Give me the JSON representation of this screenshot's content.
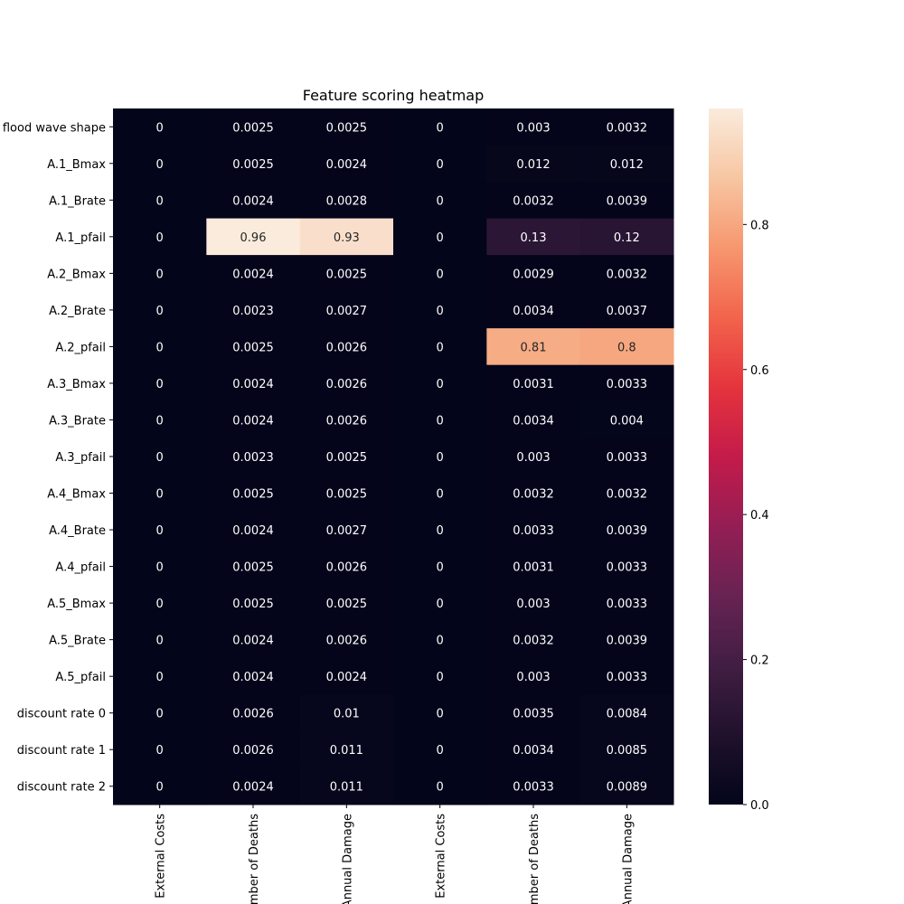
{
  "chart_data": {
    "type": "heatmap",
    "title": "Feature scoring heatmap",
    "row_labels": [
      "flood wave shape",
      "A.1_Bmax",
      "A.1_Brate",
      "A.1_pfail",
      "A.2_Bmax",
      "A.2_Brate",
      "A.2_pfail",
      "A.3_Bmax",
      "A.3_Brate",
      "A.3_pfail",
      "A.4_Bmax",
      "A.4_Brate",
      "A.4_pfail",
      "A.5_Bmax",
      "A.5_Brate",
      "A.5_pfail",
      "discount rate 0",
      "discount rate 1",
      "discount rate 2"
    ],
    "column_labels": [
      "External Costs",
      "Number of Deaths",
      "Annual Damage",
      "External Costs",
      "Number of Deaths",
      "Annual Damage"
    ],
    "values": [
      [
        0,
        0.0025,
        0.0025,
        0,
        0.003,
        0.0032
      ],
      [
        0,
        0.0025,
        0.0024,
        0,
        0.012,
        0.012
      ],
      [
        0,
        0.0024,
        0.0028,
        0,
        0.0032,
        0.0039
      ],
      [
        0,
        0.96,
        0.93,
        0,
        0.13,
        0.12
      ],
      [
        0,
        0.0024,
        0.0025,
        0,
        0.0029,
        0.0032
      ],
      [
        0,
        0.0023,
        0.0027,
        0,
        0.0034,
        0.0037
      ],
      [
        0,
        0.0025,
        0.0026,
        0,
        0.81,
        0.8
      ],
      [
        0,
        0.0024,
        0.0026,
        0,
        0.0031,
        0.0033
      ],
      [
        0,
        0.0024,
        0.0026,
        0,
        0.0034,
        0.004
      ],
      [
        0,
        0.0023,
        0.0025,
        0,
        0.003,
        0.0033
      ],
      [
        0,
        0.0025,
        0.0025,
        0,
        0.0032,
        0.0032
      ],
      [
        0,
        0.0024,
        0.0027,
        0,
        0.0033,
        0.0039
      ],
      [
        0,
        0.0025,
        0.0026,
        0,
        0.0031,
        0.0033
      ],
      [
        0,
        0.0025,
        0.0025,
        0,
        0.003,
        0.0033
      ],
      [
        0,
        0.0024,
        0.0026,
        0,
        0.0032,
        0.0039
      ],
      [
        0,
        0.0024,
        0.0024,
        0,
        0.003,
        0.0033
      ],
      [
        0,
        0.0026,
        0.01,
        0,
        0.0035,
        0.0084
      ],
      [
        0,
        0.0026,
        0.011,
        0,
        0.0034,
        0.0085
      ],
      [
        0,
        0.0024,
        0.011,
        0,
        0.0033,
        0.0089
      ]
    ],
    "colorbar": {
      "colormap": "rocket",
      "range": [
        0,
        0.96
      ],
      "ticks": [
        0.0,
        0.2,
        0.4,
        0.6,
        0.8
      ],
      "tick_labels": [
        "0.0",
        "0.2",
        "0.4",
        "0.6",
        "0.8"
      ]
    },
    "annotate": true,
    "grid": false
  }
}
